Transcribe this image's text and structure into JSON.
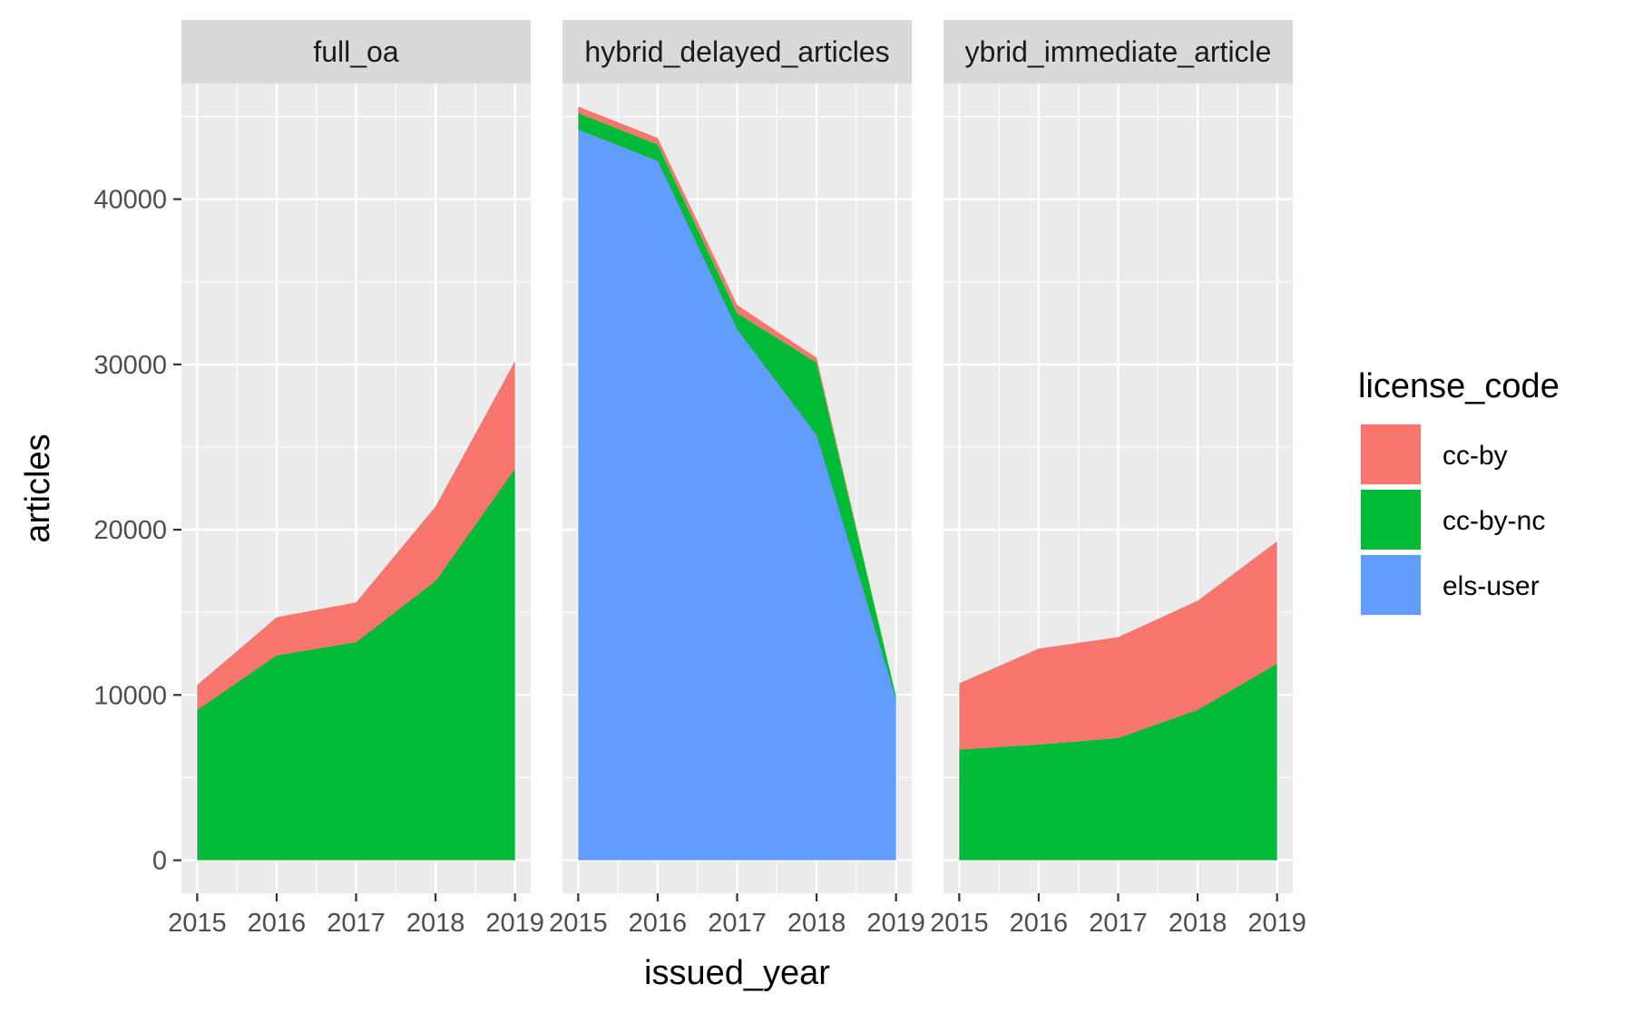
{
  "chart_data": {
    "type": "area",
    "stacked": true,
    "xlabel": "issued_year",
    "ylabel": "articles",
    "x": [
      2015,
      2016,
      2017,
      2018,
      2019
    ],
    "x_tick_labels": [
      "2015",
      "2016",
      "2017",
      "2018",
      "2019"
    ],
    "ylim": [
      -2000,
      47000
    ],
    "y_ticks": [
      0,
      10000,
      20000,
      30000,
      40000
    ],
    "y_tick_labels": [
      "0",
      "10000",
      "20000",
      "30000",
      "40000"
    ],
    "grid": true,
    "legend": {
      "title": "license_code",
      "placement": "right",
      "entries": [
        {
          "name": "cc-by",
          "color": "#F8766D"
        },
        {
          "name": "cc-by-nc",
          "color": "#00BA38"
        },
        {
          "name": "els-user",
          "color": "#619CFF"
        }
      ]
    },
    "facets": [
      {
        "label": "full_oa",
        "series": [
          {
            "name": "cc-by",
            "values": [
              1500,
              2300,
              2400,
              4500,
              6500
            ]
          },
          {
            "name": "cc-by-nc",
            "values": [
              9100,
              12400,
              13200,
              16900,
              23700
            ]
          },
          {
            "name": "els-user",
            "values": [
              0,
              0,
              0,
              0,
              0
            ]
          }
        ]
      },
      {
        "label": "hybrid_delayed_articles",
        "series": [
          {
            "name": "cc-by",
            "values": [
              400,
              400,
              500,
              300,
              0
            ]
          },
          {
            "name": "cc-by-nc",
            "values": [
              1000,
              1000,
              1000,
              4400,
              200
            ]
          },
          {
            "name": "els-user",
            "values": [
              44200,
              42300,
              32100,
              25700,
              9700
            ]
          }
        ]
      },
      {
        "label": "ybrid_immediate_article",
        "series": [
          {
            "name": "cc-by",
            "values": [
              4000,
              5800,
              6100,
              6600,
              7400
            ]
          },
          {
            "name": "cc-by-nc",
            "values": [
              6700,
              7000,
              7400,
              9100,
              11900
            ]
          },
          {
            "name": "els-user",
            "values": [
              0,
              0,
              0,
              0,
              0
            ]
          }
        ]
      }
    ]
  }
}
